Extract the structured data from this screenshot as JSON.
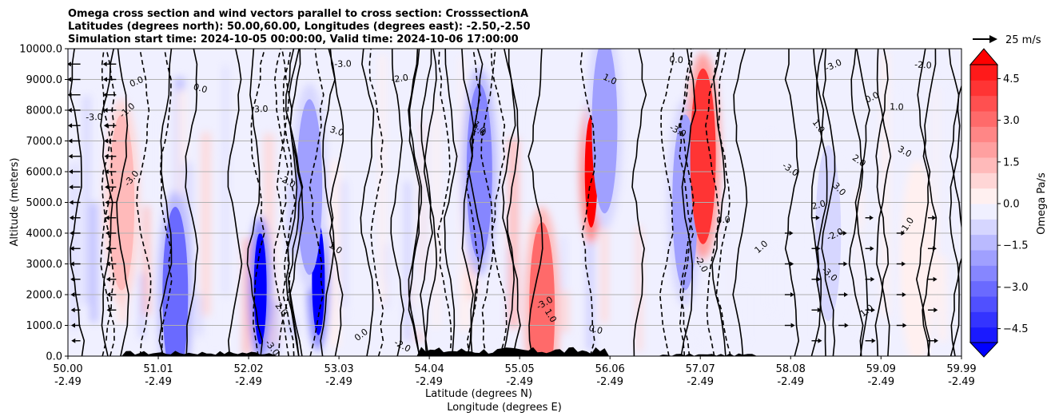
{
  "chart_data": {
    "type": "contourf-cross-section",
    "title": [
      "Omega cross section and wind vectors parallel to cross section: CrosssectionA",
      "Latitudes (degrees north): 50.00,60.00, Longitudes (degrees east): -2.50,-2.50",
      "Simulation start time: 2024-10-05 00:00:00, Valid time: 2024-10-06 17:00:00"
    ],
    "ylabel": "Altitude (meters)",
    "xlabel_lat": "Latitude (degrees N)",
    "xlabel_lon": "Longitude (degrees E)",
    "ylim": [
      0,
      10000
    ],
    "xlim": [
      50.0,
      59.99
    ],
    "y_ticks": [
      "0.0",
      "1000.0",
      "2000.0",
      "3000.0",
      "4000.0",
      "5000.0",
      "6000.0",
      "7000.0",
      "8000.0",
      "9000.0",
      "10000.0"
    ],
    "x_ticks": [
      {
        "lat": "50.00",
        "lon": "-2.49"
      },
      {
        "lat": "51.01",
        "lon": "-2.49"
      },
      {
        "lat": "52.02",
        "lon": "-2.49"
      },
      {
        "lat": "53.03",
        "lon": "-2.49"
      },
      {
        "lat": "54.04",
        "lon": "-2.49"
      },
      {
        "lat": "55.05",
        "lon": "-2.49"
      },
      {
        "lat": "56.06",
        "lon": "-2.49"
      },
      {
        "lat": "57.07",
        "lon": "-2.49"
      },
      {
        "lat": "58.08",
        "lon": "-2.49"
      },
      {
        "lat": "59.09",
        "lon": "-2.49"
      },
      {
        "lat": "59.99",
        "lon": "-2.49"
      }
    ],
    "colorbar": {
      "label": "Omega Pa/s",
      "range": [
        -5.0,
        5.0
      ],
      "ticks": [
        "4.5",
        "3.0",
        "1.5",
        "0.0",
        "−1.5",
        "−3.0",
        "−4.5"
      ],
      "colors_low_to_high": [
        "#0000ff",
        "#1a1aff",
        "#3434ff",
        "#5050ff",
        "#6a6aff",
        "#8686ff",
        "#a0a0ff",
        "#babaff",
        "#d6d6ff",
        "#f0f0ff",
        "#fff0f0",
        "#ffd6d6",
        "#ffbaba",
        "#ffa0a0",
        "#ff8686",
        "#ff6a6a",
        "#ff5050",
        "#ff3434",
        "#ff1a1a",
        "#ff0000"
      ]
    },
    "wind_reference": {
      "label": "25 m/s",
      "value": 25
    },
    "contour_labels": [
      "0.0",
      "-1.0",
      "1.0",
      "-3.0",
      "3.0",
      "-2.0",
      "2.0"
    ],
    "features": [
      {
        "lat": 51.2,
        "alt_center": 2000,
        "omega": -3.0
      },
      {
        "lat": 52.15,
        "alt_center": 2200,
        "omega": -5.0
      },
      {
        "lat": 52.8,
        "alt_center": 2500,
        "omega": -5.0
      },
      {
        "lat": 52.7,
        "alt_center": 5500,
        "omega": -2.0
      },
      {
        "lat": 54.6,
        "alt_center": 6000,
        "omega": -2.5
      },
      {
        "lat": 55.85,
        "alt_center": 6000,
        "omega": 4.5
      },
      {
        "lat": 56.0,
        "alt_center": 7500,
        "omega": -2.0
      },
      {
        "lat": 56.9,
        "alt_center": 5000,
        "omega": -2.0
      },
      {
        "lat": 57.1,
        "alt_center": 6500,
        "omega": 3.5
      },
      {
        "lat": 55.3,
        "alt_center": 1500,
        "omega": 2.5
      },
      {
        "lat": 50.6,
        "alt_center": 5000,
        "omega": 1.0
      },
      {
        "lat": 58.5,
        "alt_center": 4000,
        "omega": -0.8
      },
      {
        "lat": 59.5,
        "alt_center": 3000,
        "omega": 0.4
      }
    ],
    "wind_arrows_note": "westward arrows in left part (lat ~50.0-50.8), eastward arrows in right part (lat ~58-59.9)"
  }
}
